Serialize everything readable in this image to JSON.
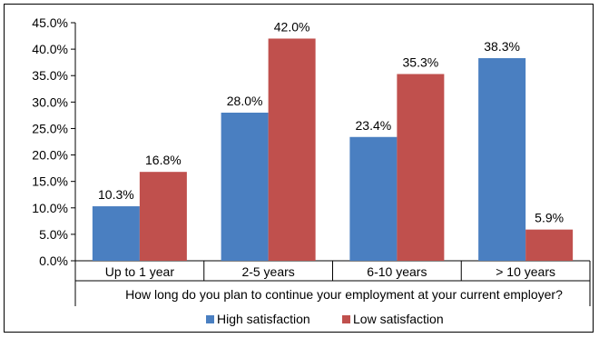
{
  "chart_data": {
    "type": "bar",
    "categories": [
      "Up to 1 year",
      "2-5 years",
      "6-10 years",
      "> 10 years"
    ],
    "series": [
      {
        "name": "High satisfaction",
        "values": [
          10.3,
          28.0,
          23.4,
          38.3
        ],
        "color": "#4a7fc1"
      },
      {
        "name": "Low satisfaction",
        "values": [
          16.8,
          42.0,
          35.3,
          5.9
        ],
        "color": "#c0504d"
      }
    ],
    "value_labels": [
      [
        "10.3%",
        "28.0%",
        "23.4%",
        "38.3%"
      ],
      [
        "16.8%",
        "42.0%",
        "35.3%",
        "5.9%"
      ]
    ],
    "y_ticks": [
      "0.0%",
      "5.0%",
      "10.0%",
      "15.0%",
      "20.0%",
      "25.0%",
      "30.0%",
      "35.0%",
      "40.0%",
      "45.0%"
    ],
    "ylim": [
      0,
      45
    ],
    "xlabel": "How long do you plan to continue your employment at your current employer?",
    "ylabel": "",
    "grid": false,
    "legend_position": "bottom"
  }
}
